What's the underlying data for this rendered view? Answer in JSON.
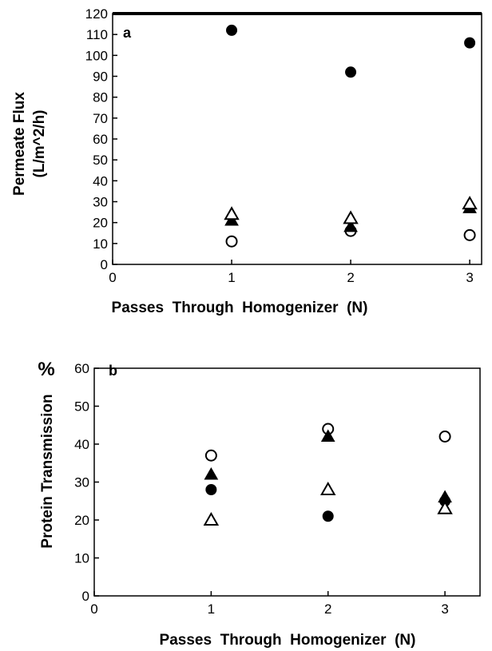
{
  "chart_data": [
    {
      "type": "scatter",
      "panel_label": "a",
      "title": "",
      "xlabel": "Passes  Through  Homogenizer  (N)",
      "ylabel": "Permeate Flux",
      "ylabel_units": "(L/m^2/h)",
      "xlim": [
        0,
        3.1
      ],
      "ylim": [
        0,
        120
      ],
      "xticks": [
        0,
        1,
        2,
        3
      ],
      "yticks": [
        0,
        10,
        20,
        30,
        40,
        50,
        60,
        70,
        80,
        90,
        100,
        110,
        120
      ],
      "grid": false,
      "series": [
        {
          "marker": "filled-circle",
          "x": [
            1,
            2,
            3
          ],
          "y": [
            112,
            92,
            106
          ]
        },
        {
          "marker": "open-circle",
          "x": [
            1,
            2,
            3
          ],
          "y": [
            11,
            16,
            14
          ]
        },
        {
          "marker": "filled-triangle",
          "x": [
            1,
            2,
            3
          ],
          "y": [
            21,
            18,
            27
          ]
        },
        {
          "marker": "open-triangle",
          "x": [
            1,
            2,
            3
          ],
          "y": [
            24,
            22,
            29
          ]
        }
      ]
    },
    {
      "type": "scatter",
      "panel_label": "b",
      "title": "",
      "xlabel": "Passes  Through  Homogenizer  (N)",
      "ylabel": "Protein Transmission",
      "ylabel_units": "%",
      "xlim": [
        0,
        3.3
      ],
      "ylim": [
        0,
        60
      ],
      "xticks": [
        0,
        1,
        2,
        3
      ],
      "yticks": [
        0,
        10,
        20,
        30,
        40,
        50,
        60
      ],
      "grid": false,
      "series": [
        {
          "marker": "open-circle",
          "x": [
            1,
            2,
            3
          ],
          "y": [
            37,
            44,
            42
          ]
        },
        {
          "marker": "filled-triangle",
          "x": [
            1,
            2,
            3
          ],
          "y": [
            32,
            42,
            26
          ]
        },
        {
          "marker": "filled-circle",
          "x": [
            1,
            2,
            3
          ],
          "y": [
            28,
            21,
            25
          ]
        },
        {
          "marker": "open-triangle",
          "x": [
            1,
            2,
            3
          ],
          "y": [
            20,
            28,
            23
          ]
        }
      ]
    }
  ]
}
